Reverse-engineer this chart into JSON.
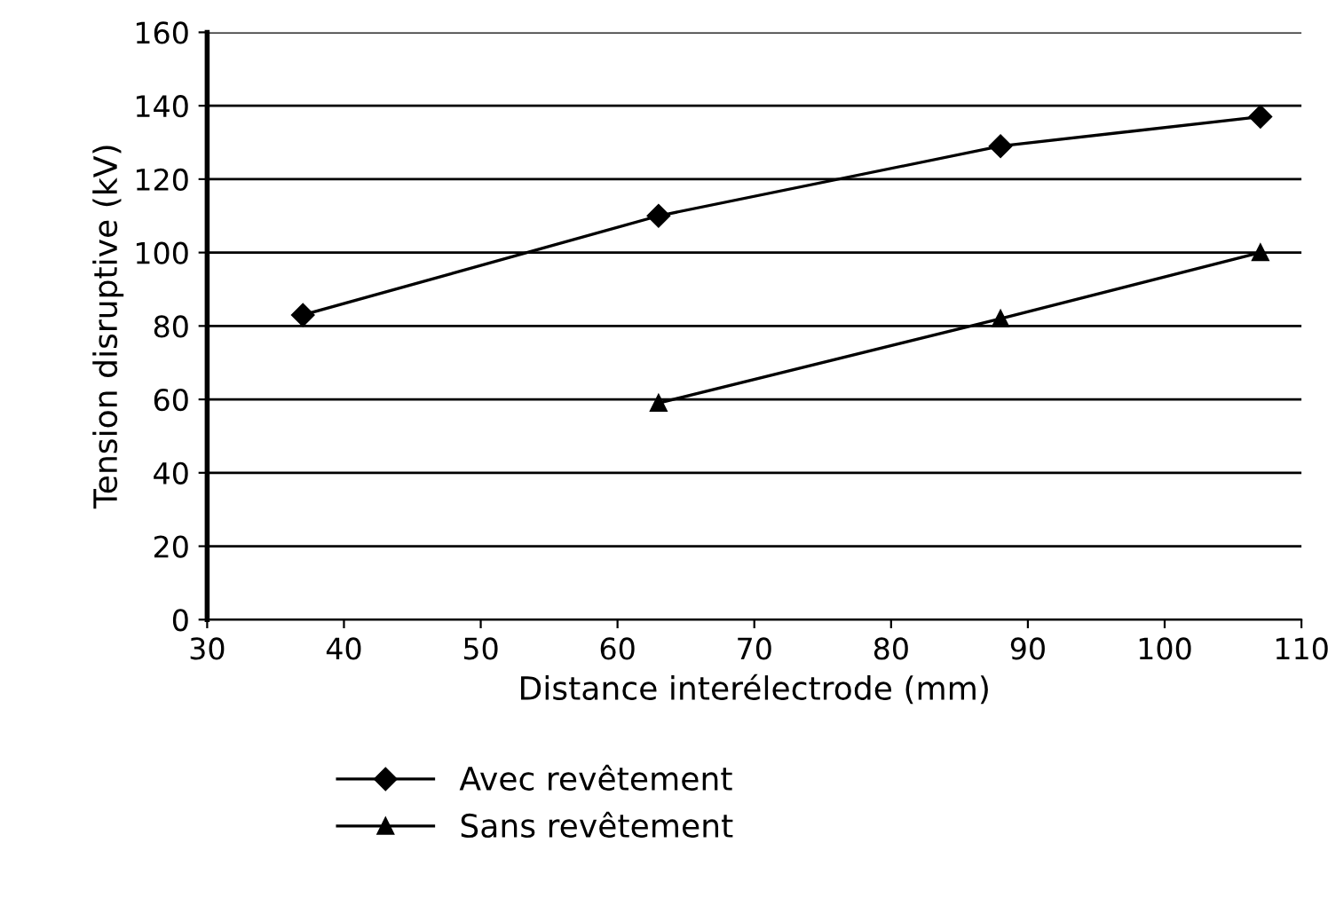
{
  "chart_data": {
    "type": "line",
    "xlabel": "Distance interélectrode (mm)",
    "ylabel": "Tension disruptive (kV)",
    "series": [
      {
        "name": "Avec revêtement",
        "color": "#000000",
        "marker": "diamond",
        "x": [
          37,
          63,
          88,
          107
        ],
        "values": [
          83,
          110,
          129,
          137
        ]
      },
      {
        "name": "Sans revêtement",
        "color": "#000000",
        "marker": "triangle",
        "x": [
          63,
          88,
          107
        ],
        "values": [
          59,
          82,
          100
        ]
      }
    ],
    "xlim": [
      30,
      110
    ],
    "xticks": [
      30,
      40,
      50,
      60,
      70,
      80,
      90,
      100,
      110
    ],
    "ylim": [
      0,
      160
    ],
    "yticks": [
      0,
      20,
      40,
      60,
      80,
      100,
      120,
      140,
      160
    ],
    "grid": "y",
    "legend": "bottom",
    "line_style": "solid"
  }
}
